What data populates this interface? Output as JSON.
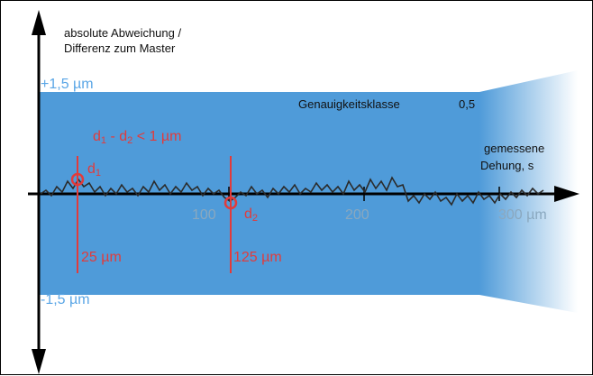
{
  "y_axis_label_line1": "absolute Abweichung /",
  "y_axis_label_line2": "Differenz zum Master",
  "upper_limit": "+1,5 µm",
  "lower_limit": "-1,5 µm",
  "accuracy_class_label": "Genauigkeitsklasse",
  "accuracy_class_value": "0,5",
  "x_axis_label_line1": "gemessene",
  "x_axis_label_line2": "Dehung,   s",
  "diff_formula": {
    "d1": "d",
    "s1": "1",
    "mid": " - d",
    "s2": "2",
    "rest": " < 1 µm"
  },
  "marker_d1": {
    "base": "d",
    "sub": "1"
  },
  "marker_d2": {
    "base": "d",
    "sub": "2"
  },
  "pos1_label": "25 µm",
  "pos2_label": "125 µm",
  "ticks": [
    "100",
    "200",
    "300 µm"
  ],
  "colors": {
    "band": "#4f9bd9",
    "signal": "#2b2b2b",
    "marker": "#e23b3b",
    "axis": "#000000",
    "limit_text": "#5aa6e6"
  }
}
